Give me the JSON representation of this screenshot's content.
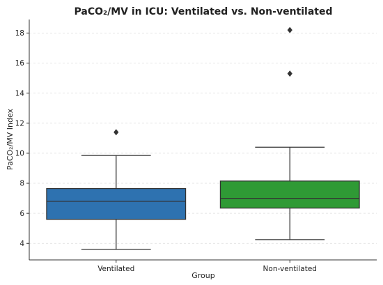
{
  "chart_data": {
    "type": "box",
    "title": "PaCO₂/MV in ICU: Ventilated vs. Non-ventilated",
    "xlabel": "Group",
    "ylabel": "PaCO₂/MV Index",
    "categories": [
      "Ventilated",
      "Non-ventilated"
    ],
    "ylim": [
      2.9,
      18.9
    ],
    "yticks": [
      4,
      6,
      8,
      10,
      12,
      14,
      16,
      18
    ],
    "grid": true,
    "boxes": [
      {
        "name": "Ventilated",
        "whisker_low": 3.6,
        "q1": 5.6,
        "median": 6.8,
        "q3": 7.65,
        "whisker_high": 9.85,
        "outliers": [
          11.4
        ],
        "color": "#2e72b0"
      },
      {
        "name": "Non-ventilated",
        "whisker_low": 4.25,
        "q1": 6.35,
        "median": 7.0,
        "q3": 8.15,
        "whisker_high": 10.4,
        "outliers": [
          15.3,
          18.2
        ],
        "color": "#2f9a35"
      }
    ]
  }
}
